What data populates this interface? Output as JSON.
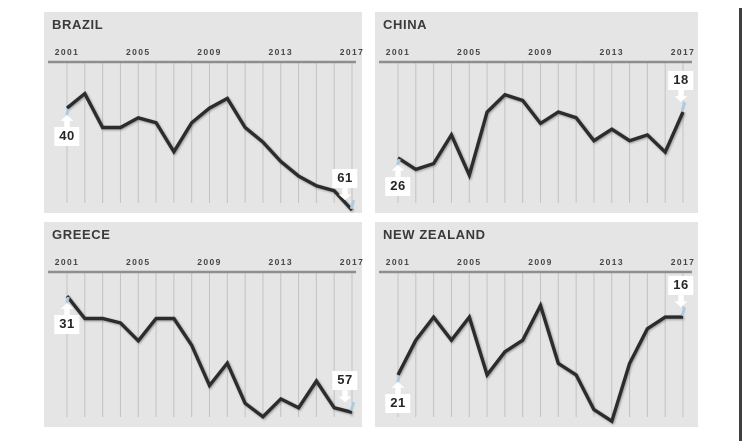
{
  "page": {
    "background": "#ffffff",
    "window_border_color": "#3f3f3f"
  },
  "style": {
    "panel_bg": "#e5e5e5",
    "line_color": "#2c2c2c",
    "grid_color": "#c2c2c2",
    "axis_color": "#8e8e8e",
    "title_color": "#3a3a3a",
    "tick_label_color": "#454545",
    "callout_bg": "#ffffff",
    "callout_text_color": "#262626",
    "endpoint_tick_color": "#aecadf"
  },
  "chart_data": [
    {
      "type": "line",
      "title": "BRAZIL",
      "x": [
        2001,
        2002,
        2003,
        2004,
        2005,
        2006,
        2007,
        2008,
        2009,
        2010,
        2011,
        2012,
        2013,
        2014,
        2015,
        2016,
        2017
      ],
      "x_tick_labels": [
        "2001",
        "2005",
        "2009",
        "2013",
        "2017"
      ],
      "values": [
        40,
        37,
        44,
        44,
        42,
        43,
        49,
        43,
        40,
        38,
        44,
        47,
        51,
        54,
        56,
        57,
        61
      ],
      "start_label": "40",
      "end_label": "61",
      "y_scale": "rank (lower number plotted higher)",
      "ylim_top_bottom": [
        30.5,
        61.6
      ],
      "grid": "vertical yearly gridlines, top axis, no y axis"
    },
    {
      "type": "line",
      "title": "CHINA",
      "x": [
        2001,
        2002,
        2003,
        2004,
        2005,
        2006,
        2007,
        2008,
        2009,
        2010,
        2011,
        2012,
        2013,
        2014,
        2015,
        2016,
        2017
      ],
      "x_tick_labels": [
        "2001",
        "2005",
        "2009",
        "2013",
        "2017"
      ],
      "values": [
        26,
        28,
        27,
        22,
        29,
        18,
        15,
        16,
        20,
        18,
        19,
        23,
        21,
        23,
        22,
        25,
        18
      ],
      "start_label": "26",
      "end_label": "18",
      "y_scale": "rank (lower number plotted higher)",
      "ylim_top_bottom": [
        9.3,
        35.6
      ],
      "grid": "vertical yearly gridlines, top axis, no y axis"
    },
    {
      "type": "line",
      "title": "GREECE",
      "x": [
        2001,
        2002,
        2003,
        2004,
        2005,
        2006,
        2007,
        2008,
        2009,
        2010,
        2011,
        2012,
        2013,
        2014,
        2015,
        2016,
        2017
      ],
      "x_tick_labels": [
        "2001",
        "2005",
        "2009",
        "2013",
        "2017"
      ],
      "values": [
        31,
        36,
        36,
        37,
        41,
        36,
        36,
        42,
        51,
        46,
        55,
        58,
        54,
        56,
        50,
        56,
        57
      ],
      "start_label": "31",
      "end_label": "57",
      "y_scale": "rank (lower number plotted higher)",
      "ylim_top_bottom": [
        25.6,
        60.3
      ],
      "grid": "vertical yearly gridlines, top axis, no y axis"
    },
    {
      "type": "line",
      "title": "NEW ZEALAND",
      "x": [
        2001,
        2002,
        2003,
        2004,
        2005,
        2006,
        2007,
        2008,
        2009,
        2010,
        2011,
        2012,
        2013,
        2014,
        2015,
        2016,
        2017
      ],
      "x_tick_labels": [
        "2001",
        "2005",
        "2009",
        "2013",
        "2017"
      ],
      "values": [
        21,
        18,
        16,
        18,
        16,
        21,
        19,
        18,
        15,
        20,
        21,
        24,
        25,
        20,
        17,
        16,
        16
      ],
      "start_label": "21",
      "end_label": "16",
      "y_scale": "rank (lower number plotted higher)",
      "ylim_top_bottom": [
        12.1,
        25.5
      ],
      "grid": "vertical yearly gridlines, top axis, no y axis"
    }
  ]
}
